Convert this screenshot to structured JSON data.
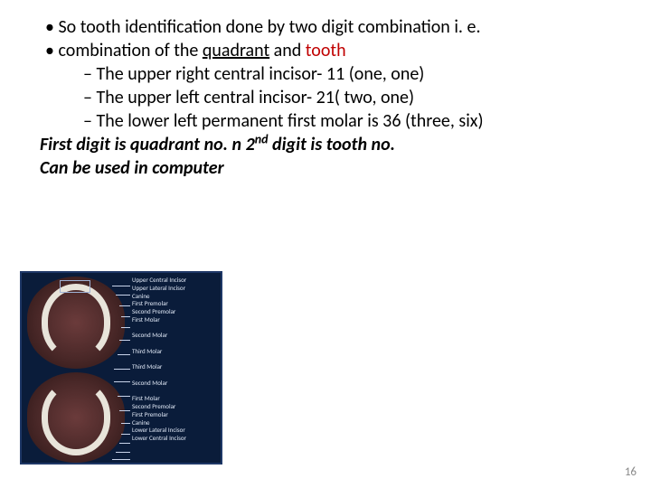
{
  "bullets_l1": [
    "So tooth identification done by two digit combination i. e.",
    "combination of the ",
    " and "
  ],
  "quadrant_word": "quadrant",
  "tooth_word": "tooth",
  "bullets_l2": [
    "The upper right central incisor- 11 (one, one)",
    "The upper left central incisor- 21( two, one)",
    "The lower left permanent first molar is 36 (three, six)"
  ],
  "conclude": {
    "line1_a": "First digit is quadrant no. n 2",
    "line1_sup": "nd",
    "line1_b": " digit is tooth no.",
    "line2": "Can be used in computer"
  },
  "diagram": {
    "labels_top": [
      "Upper Central Incisor",
      "Upper Lateral Incisor",
      "Canine",
      "First Premolar",
      "Second Premolar",
      "First Molar",
      "",
      "Second Molar",
      "",
      "Third Molar"
    ],
    "labels_bot": [
      "Third Molar",
      "",
      "Second Molar",
      "",
      "First Molar",
      "Second Premolar",
      "First Premolar",
      "Canine",
      "Lower Lateral Incisor",
      "Lower Central Incisor"
    ],
    "border_color": "#1e3766",
    "bg_color": "#0a1c3a",
    "label_color": "#dfe7f5"
  },
  "page_number": "16"
}
